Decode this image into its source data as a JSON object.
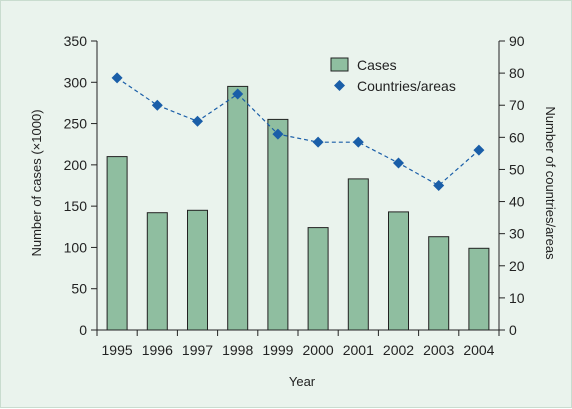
{
  "chart_data": {
    "type": "bar",
    "categories": [
      "1995",
      "1996",
      "1997",
      "1998",
      "1999",
      "2000",
      "2001",
      "2002",
      "2003",
      "2004"
    ],
    "series": [
      {
        "name": "Cases",
        "type": "bar",
        "axis": "left",
        "values": [
          210,
          142,
          145,
          295,
          255,
          124,
          183,
          143,
          113,
          99
        ]
      },
      {
        "name": "Countries/areas",
        "type": "line-dashed-markers",
        "axis": "right",
        "values": [
          78.5,
          70,
          65,
          73.5,
          61,
          58.5,
          58.5,
          52,
          45,
          56
        ]
      }
    ],
    "title": "",
    "xlabel": "Year",
    "ylabel": "Number of cases (×1000)",
    "y2label": "Number of countries/areas",
    "ylim": [
      0,
      350
    ],
    "yticks": [
      "0",
      "50",
      "100",
      "150",
      "200",
      "250",
      "300",
      "350"
    ],
    "y2lim": [
      0,
      90
    ],
    "y2ticks": [
      "0",
      "10",
      "20",
      "30",
      "40",
      "50",
      "60",
      "70",
      "80",
      "90"
    ],
    "legend_position": "top-right",
    "grid": false,
    "colors": {
      "bar_fill": "#8fbea0",
      "bar_stroke": "#222222",
      "marker": "#1a5ea8",
      "line": "#1a5ea8",
      "panel_background": "#eaf3ed"
    }
  }
}
